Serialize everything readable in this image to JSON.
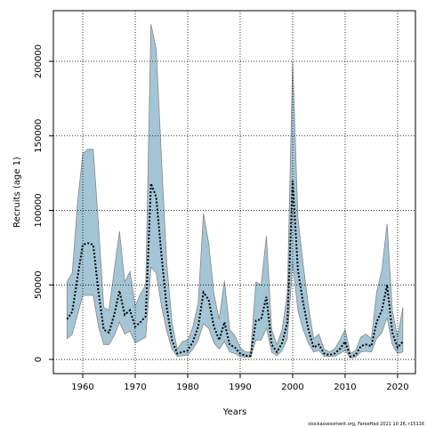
{
  "chart_data": {
    "type": "band-line",
    "xlabel": "Years",
    "ylabel": "Recruits (age 1)",
    "footer": "stockassessment.org, FaroeHad 2021 10 26, r15116",
    "x": [
      1957,
      1958,
      1959,
      1960,
      1961,
      1962,
      1963,
      1964,
      1965,
      1966,
      1967,
      1968,
      1969,
      1970,
      1971,
      1972,
      1973,
      1974,
      1975,
      1976,
      1977,
      1978,
      1979,
      1980,
      1981,
      1982,
      1983,
      1984,
      1985,
      1986,
      1987,
      1988,
      1989,
      1990,
      1991,
      1992,
      1993,
      1994,
      1995,
      1996,
      1997,
      1998,
      1999,
      2000,
      2001,
      2002,
      2003,
      2004,
      2005,
      2006,
      2007,
      2008,
      2009,
      2010,
      2011,
      2012,
      2013,
      2014,
      2015,
      2016,
      2017,
      2018,
      2019,
      2020,
      2021
    ],
    "values": [
      27000,
      32000,
      55000,
      77000,
      78000,
      77000,
      45000,
      20000,
      18000,
      30000,
      46000,
      30000,
      33000,
      22000,
      25000,
      29000,
      118000,
      109000,
      70000,
      35000,
      13000,
      4000,
      5000,
      6000,
      12000,
      22000,
      45000,
      40000,
      22000,
      13000,
      25000,
      10000,
      8000,
      4000,
      2500,
      2500,
      26000,
      27000,
      42000,
      10000,
      5000,
      11000,
      25000,
      120000,
      60000,
      38000,
      20000,
      8000,
      10000,
      4000,
      3000,
      4000,
      7000,
      12000,
      2000,
      3000,
      9000,
      10000,
      9000,
      25000,
      33000,
      50000,
      18000,
      8000,
      12000
    ],
    "lower": [
      14000,
      17000,
      30000,
      43000,
      43000,
      43000,
      22000,
      10000,
      10000,
      16000,
      25000,
      17000,
      19000,
      11000,
      13000,
      15000,
      62000,
      58000,
      36000,
      19000,
      7000,
      2000,
      2500,
      3000,
      7000,
      13000,
      24000,
      21000,
      11000,
      7000,
      12000,
      5000,
      4000,
      2000,
      1500,
      1500,
      13000,
      13000,
      21000,
      5000,
      2500,
      6000,
      14000,
      65000,
      33000,
      20000,
      11000,
      5000,
      6000,
      2000,
      2000,
      2000,
      4000,
      6000,
      1000,
      1500,
      5000,
      5500,
      5000,
      14000,
      18000,
      28000,
      10000,
      4000,
      5000
    ],
    "upper": [
      52000,
      58000,
      105000,
      138000,
      141000,
      141000,
      90000,
      35000,
      33000,
      60000,
      86000,
      52000,
      59000,
      36000,
      44000,
      50000,
      225000,
      208000,
      135000,
      65000,
      25000,
      7000,
      12000,
      13000,
      22000,
      38000,
      98000,
      78000,
      44000,
      27000,
      53000,
      20000,
      16000,
      8000,
      5000,
      5000,
      52000,
      50000,
      83000,
      20000,
      10000,
      20000,
      45000,
      200000,
      95000,
      64000,
      36000,
      14000,
      17000,
      7000,
      5000,
      7000,
      13000,
      20000,
      4000,
      6000,
      15000,
      17000,
      14000,
      45000,
      60000,
      91000,
      33000,
      15000,
      35000
    ],
    "band_color": "#a3c5d5",
    "line_color": "#000000",
    "xlim": [
      1954.4,
      2023.4
    ],
    "ylim": [
      -9500,
      234000
    ],
    "xticks": [
      1960,
      1970,
      1980,
      1990,
      2000,
      2010,
      2020
    ],
    "yticks": [
      0,
      50000,
      100000,
      150000,
      200000
    ],
    "grid": true
  }
}
